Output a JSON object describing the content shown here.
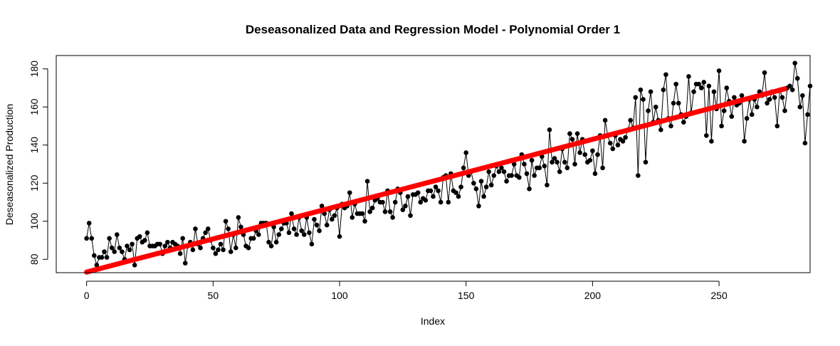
{
  "chart_data": {
    "type": "line",
    "title": "Deseasonalized Data and Regression Model - Polynomial Order 1",
    "xlabel": "Index",
    "ylabel": "Deseasonalized Production",
    "xlim": [
      -12,
      286
    ],
    "ylim": [
      73,
      187
    ],
    "x_ticks": [
      0,
      50,
      100,
      150,
      200,
      250
    ],
    "y_ticks": [
      80,
      100,
      120,
      140,
      160,
      180
    ],
    "grid": false,
    "legend": "none",
    "colors": {
      "data": "#000000",
      "regression": "#ff0000"
    },
    "series": [
      {
        "style": "line-with-points",
        "x_start": 0,
        "x_step": 1,
        "values": [
          91,
          99,
          91,
          82,
          77,
          81,
          81,
          84,
          81,
          91,
          86,
          84,
          93,
          86,
          84,
          80,
          87,
          85,
          88,
          77,
          91,
          92,
          89,
          90,
          94,
          87,
          87,
          87,
          88,
          88,
          83,
          87,
          89,
          86,
          89,
          88,
          87,
          83,
          91,
          78,
          87,
          89,
          85,
          96,
          88,
          86,
          91,
          94,
          96,
          90,
          86,
          83,
          85,
          88,
          85,
          100,
          96,
          84,
          93,
          86,
          102,
          97,
          93,
          87,
          86,
          91,
          91,
          95,
          93,
          99,
          99,
          99,
          89,
          87,
          97,
          89,
          93,
          96,
          99,
          99,
          94,
          104,
          96,
          93,
          102,
          95,
          93,
          102,
          94,
          88,
          101,
          98,
          95,
          108,
          104,
          98,
          106,
          101,
          103,
          107,
          92,
          109,
          107,
          108,
          115,
          102,
          109,
          104,
          104,
          104,
          100,
          121,
          105,
          107,
          111,
          112,
          110,
          110,
          105,
          116,
          105,
          102,
          110,
          117,
          115,
          106,
          108,
          113,
          103,
          114,
          114,
          115,
          110,
          112,
          111,
          116,
          116,
          113,
          118,
          116,
          110,
          123,
          124,
          110,
          125,
          116,
          115,
          113,
          118,
          128,
          136,
          124,
          126,
          120,
          117,
          108,
          121,
          113,
          118,
          126,
          119,
          124,
          129,
          126,
          128,
          126,
          121,
          124,
          124,
          130,
          124,
          123,
          135,
          130,
          125,
          117,
          132,
          124,
          128,
          128,
          134,
          129,
          119,
          148,
          131,
          133,
          131,
          126,
          138,
          131,
          128,
          146,
          143,
          130,
          146,
          136,
          143,
          135,
          131,
          132,
          137,
          125,
          135,
          145,
          128,
          153,
          145,
          141,
          138,
          145,
          140,
          143,
          142,
          144,
          148,
          153,
          149,
          165,
          124,
          169,
          164,
          131,
          158,
          168,
          152,
          160,
          153,
          148,
          169,
          177,
          154,
          150,
          162,
          172,
          162,
          156,
          152,
          155,
          176,
          157,
          168,
          172,
          172,
          170,
          173,
          145,
          171,
          142,
          168,
          159,
          179,
          150,
          158,
          170,
          163,
          155,
          165,
          161,
          162,
          166,
          142,
          154,
          164,
          156,
          164,
          160,
          168,
          166,
          178,
          162,
          164,
          168,
          165,
          150,
          169,
          165,
          158,
          170,
          171,
          169,
          183,
          175,
          160,
          166,
          141,
          156,
          171
        ]
      },
      {
        "style": "thick-line",
        "x": [
          0,
          276
        ],
        "y": [
          73.3,
          169.5
        ]
      }
    ]
  }
}
